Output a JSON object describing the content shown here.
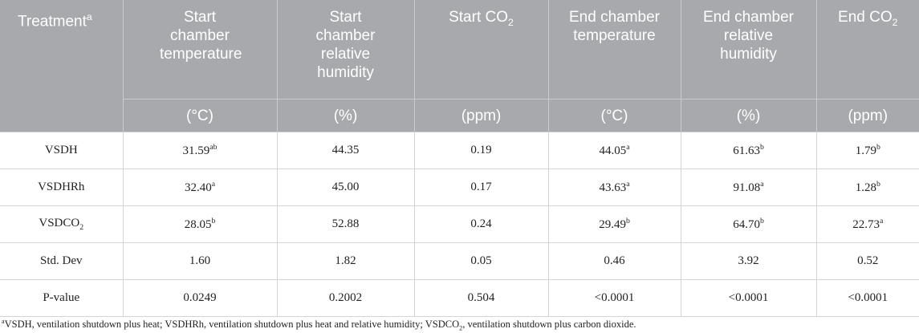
{
  "table": {
    "header": [
      [
        {
          "text": "Treatment"
        },
        {
          "text": "a",
          "style": "sup"
        }
      ],
      [
        {
          "text": "Start chamber temperature"
        }
      ],
      [
        {
          "text": "Start chamber relative humidity"
        }
      ],
      [
        {
          "text": "Start CO"
        },
        {
          "text": "2",
          "style": "sub"
        }
      ],
      [
        {
          "text": "End chamber temperature"
        }
      ],
      [
        {
          "text": "End chamber relative humidity"
        }
      ],
      [
        {
          "text": "End CO"
        },
        {
          "text": "2",
          "style": "sub"
        }
      ]
    ],
    "units": [
      "(°C)",
      "(%)",
      "(ppm)",
      "(°C)",
      "(%)",
      "(ppm)"
    ],
    "rows": [
      [
        [
          {
            "text": "VSDH"
          }
        ],
        [
          {
            "text": "31.59"
          },
          {
            "text": "ab",
            "style": "sup"
          }
        ],
        [
          {
            "text": "44.35"
          }
        ],
        [
          {
            "text": "0.19"
          }
        ],
        [
          {
            "text": "44.05"
          },
          {
            "text": "a",
            "style": "sup"
          }
        ],
        [
          {
            "text": "61.63"
          },
          {
            "text": "b",
            "style": "sup"
          }
        ],
        [
          {
            "text": "1.79"
          },
          {
            "text": "b",
            "style": "sup"
          }
        ]
      ],
      [
        [
          {
            "text": "VSDHRh"
          }
        ],
        [
          {
            "text": "32.40"
          },
          {
            "text": "a",
            "style": "sup"
          }
        ],
        [
          {
            "text": "45.00"
          }
        ],
        [
          {
            "text": "0.17"
          }
        ],
        [
          {
            "text": "43.63"
          },
          {
            "text": "a",
            "style": "sup"
          }
        ],
        [
          {
            "text": "91.08"
          },
          {
            "text": "a",
            "style": "sup"
          }
        ],
        [
          {
            "text": "1.28"
          },
          {
            "text": "b",
            "style": "sup"
          }
        ]
      ],
      [
        [
          {
            "text": "VSDCO"
          },
          {
            "text": "2",
            "style": "sub"
          }
        ],
        [
          {
            "text": "28.05"
          },
          {
            "text": "b",
            "style": "sup"
          }
        ],
        [
          {
            "text": "52.88"
          }
        ],
        [
          {
            "text": "0.24"
          }
        ],
        [
          {
            "text": "29.49"
          },
          {
            "text": "b",
            "style": "sup"
          }
        ],
        [
          {
            "text": "64.70"
          },
          {
            "text": "b",
            "style": "sup"
          }
        ],
        [
          {
            "text": "22.73"
          },
          {
            "text": "a",
            "style": "sup"
          }
        ]
      ],
      [
        [
          {
            "text": "Std. Dev"
          }
        ],
        [
          {
            "text": "1.60"
          }
        ],
        [
          {
            "text": "1.82"
          }
        ],
        [
          {
            "text": "0.05"
          }
        ],
        [
          {
            "text": "0.46"
          }
        ],
        [
          {
            "text": "3.92"
          }
        ],
        [
          {
            "text": "0.52"
          }
        ]
      ],
      [
        [
          {
            "text": "P-value"
          }
        ],
        [
          {
            "text": "0.0249"
          }
        ],
        [
          {
            "text": "0.2002"
          }
        ],
        [
          {
            "text": "0.504"
          }
        ],
        [
          {
            "text": "<0.0001"
          }
        ],
        [
          {
            "text": "<0.0001"
          }
        ],
        [
          {
            "text": "<0.0001"
          }
        ]
      ]
    ]
  },
  "footnote": [
    {
      "text": "a",
      "style": "sup"
    },
    {
      "text": "VSDH, ventilation shutdown plus heat; VSDHRh, ventilation shutdown plus heat and relative humidity; VSDCO"
    },
    {
      "text": "2",
      "style": "sub"
    },
    {
      "text": ", ventilation shutdown plus carbon dioxide."
    }
  ]
}
